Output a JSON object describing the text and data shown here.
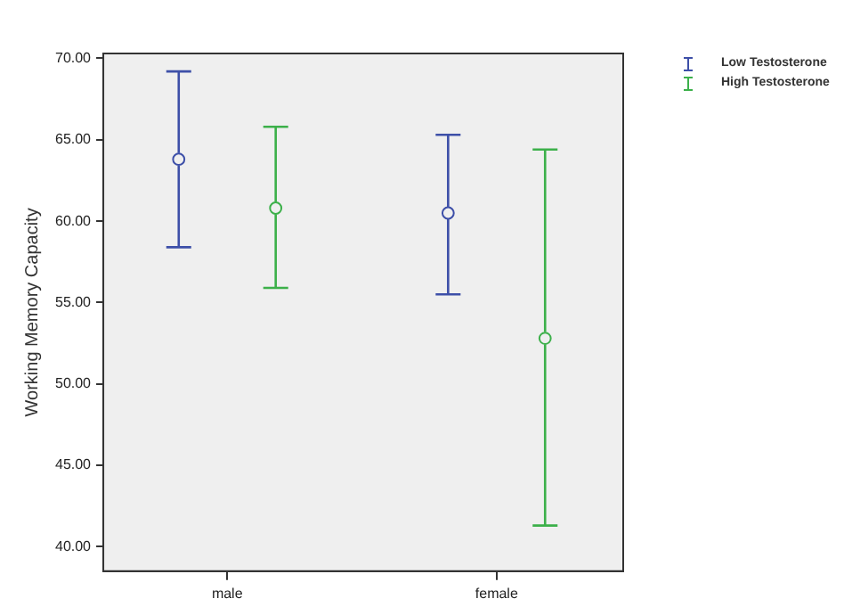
{
  "chart_data": {
    "type": "scatter",
    "ylabel": "Working Memory Capacity",
    "categories": [
      "male",
      "female"
    ],
    "series": [
      {
        "name": "Low Testosterone",
        "color": "#3d4fa8",
        "values": [
          63.8,
          60.5
        ],
        "errors": [
          [
            58.4,
            69.2
          ],
          [
            55.5,
            65.3
          ]
        ]
      },
      {
        "name": "High Testosterone",
        "color": "#3cb04a",
        "values": [
          60.8,
          52.8
        ],
        "errors": [
          [
            55.9,
            65.8
          ],
          [
            41.3,
            64.4
          ]
        ]
      }
    ],
    "ylim": [
      38.5,
      70.3
    ],
    "yticks": [
      {
        "value": 40,
        "label": "40.00"
      },
      {
        "value": 45,
        "label": "45.00"
      },
      {
        "value": 50,
        "label": "50.00"
      },
      {
        "value": 55,
        "label": "55.00"
      },
      {
        "value": 60,
        "label": "60.00"
      },
      {
        "value": 65,
        "label": "65.00"
      },
      {
        "value": 70,
        "label": "70.00"
      }
    ],
    "marker": "circle",
    "grid": false,
    "legend": "top right"
  }
}
